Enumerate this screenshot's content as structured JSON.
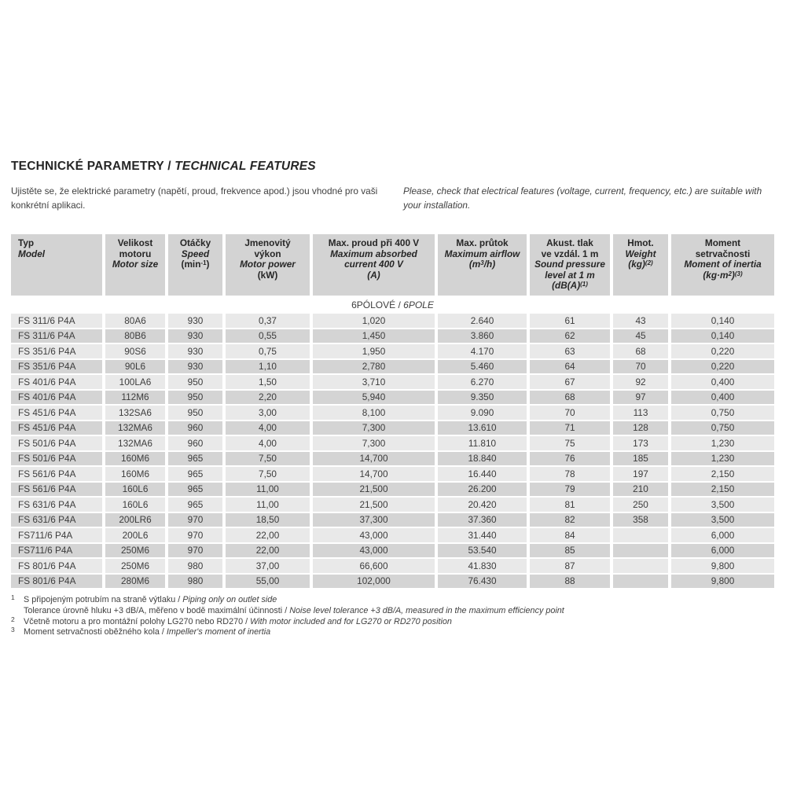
{
  "page": {
    "title": {
      "cz": "TECHNICKÉ PARAMETRY",
      "sep": " / ",
      "en": "TECHNICAL FEATURES"
    },
    "intro": {
      "cz": "Ujistěte se, že elektrické parametry (napětí, proud, frekvence apod.) jsou vhodné pro vaši konkrétní aplikaci.",
      "en": "Please, check that electrical features (voltage, current, frequency, etc.) are suitable with your installation."
    }
  },
  "colors": {
    "header_bg": "#d3d3d3",
    "row_light": "#e9e9e9",
    "row_dark": "#d4d4d4",
    "text": "#3b3b3b"
  },
  "table": {
    "section": {
      "cz": "6PÓLOVÉ",
      "sep": " / ",
      "en": "6POLE"
    },
    "columns": [
      {
        "id": "model",
        "align": "left",
        "lines": [
          [
            "Typ",
            0
          ],
          [
            "Model",
            1
          ]
        ]
      },
      {
        "id": "motor-size",
        "lines": [
          [
            "Velikost",
            0
          ],
          [
            "motoru",
            0
          ],
          [
            "Motor size",
            1
          ]
        ]
      },
      {
        "id": "speed",
        "lines": [
          [
            "Otáčky",
            0
          ],
          [
            "Speed",
            1
          ],
          [
            "(min^{-1})",
            0
          ]
        ]
      },
      {
        "id": "motor-power",
        "lines": [
          [
            "Jmenovitý",
            0
          ],
          [
            "výkon",
            0
          ],
          [
            "Motor power",
            1
          ],
          [
            "(kW)",
            0
          ]
        ]
      },
      {
        "id": "max-current",
        "lines": [
          [
            "Max. proud při 400 V",
            0
          ],
          [
            "Maximum absorbed",
            1
          ],
          [
            "current 400 V",
            1
          ],
          [
            "(A)",
            1
          ]
        ]
      },
      {
        "id": "max-airflow",
        "lines": [
          [
            "Max. průtok",
            0
          ],
          [
            "Maximum airflow",
            1
          ],
          [
            "(m^{3}/h)",
            1
          ]
        ]
      },
      {
        "id": "sound-pressure",
        "lines": [
          [
            "Akust. tlak",
            0
          ],
          [
            "ve vzdál. 1 m",
            0
          ],
          [
            "Sound pressure",
            1
          ],
          [
            "level at 1 m",
            1
          ],
          [
            "(dB(A)^{(1)}",
            1
          ]
        ]
      },
      {
        "id": "weight",
        "lines": [
          [
            "Hmot.",
            0
          ],
          [
            "Weight",
            1
          ],
          [
            "(kg)^{(2)}",
            1
          ]
        ]
      },
      {
        "id": "inertia",
        "lines": [
          [
            "Moment",
            0
          ],
          [
            "setrvačnosti",
            0
          ],
          [
            "Moment of inertia",
            1
          ],
          [
            "(kg·m^{2})^{(3)}",
            1
          ]
        ]
      }
    ],
    "rows": [
      [
        "FS 311/6 P4A",
        "80A6",
        "930",
        "0,37",
        "1,020",
        "2.640",
        "61",
        "43",
        "0,140"
      ],
      [
        "FS 311/6 P4A",
        "80B6",
        "930",
        "0,55",
        "1,450",
        "3.860",
        "62",
        "45",
        "0,140"
      ],
      [
        "FS 351/6 P4A",
        "90S6",
        "930",
        "0,75",
        "1,950",
        "4.170",
        "63",
        "68",
        "0,220"
      ],
      [
        "FS 351/6 P4A",
        "90L6",
        "930",
        "1,10",
        "2,780",
        "5.460",
        "64",
        "70",
        "0,220"
      ],
      [
        "FS 401/6 P4A",
        "100LA6",
        "950",
        "1,50",
        "3,710",
        "6.270",
        "67",
        "92",
        "0,400"
      ],
      [
        "FS 401/6 P4A",
        "112M6",
        "950",
        "2,20",
        "5,940",
        "9.350",
        "68",
        "97",
        "0,400"
      ],
      [
        "FS 451/6 P4A",
        "132SA6",
        "950",
        "3,00",
        "8,100",
        "9.090",
        "70",
        "113",
        "0,750"
      ],
      [
        "FS 451/6 P4A",
        "132MA6",
        "960",
        "4,00",
        "7,300",
        "13.610",
        "71",
        "128",
        "0,750"
      ],
      [
        "FS 501/6 P4A",
        "132MA6",
        "960",
        "4,00",
        "7,300",
        "11.810",
        "75",
        "173",
        "1,230"
      ],
      [
        "FS 501/6 P4A",
        "160M6",
        "965",
        "7,50",
        "14,700",
        "18.840",
        "76",
        "185",
        "1,230"
      ],
      [
        "FS 561/6 P4A",
        "160M6",
        "965",
        "7,50",
        "14,700",
        "16.440",
        "78",
        "197",
        "2,150"
      ],
      [
        "FS 561/6 P4A",
        "160L6",
        "965",
        "11,00",
        "21,500",
        "26.200",
        "79",
        "210",
        "2,150"
      ],
      [
        "FS 631/6 P4A",
        "160L6",
        "965",
        "11,00",
        "21,500",
        "20.420",
        "81",
        "250",
        "3,500"
      ],
      [
        "FS 631/6 P4A",
        "200LR6",
        "970",
        "18,50",
        "37,300",
        "37.360",
        "82",
        "358",
        "3,500"
      ],
      [
        "FS711/6 P4A",
        "200L6",
        "970",
        "22,00",
        "43,000",
        "31.440",
        "84",
        "",
        "6,000"
      ],
      [
        "FS711/6 P4A",
        "250M6",
        "970",
        "22,00",
        "43,000",
        "53.540",
        "85",
        "",
        "6,000"
      ],
      [
        "FS 801/6 P4A",
        "250M6",
        "980",
        "37,00",
        "66,600",
        "41.830",
        "87",
        "",
        "9,800"
      ],
      [
        "FS 801/6 P4A",
        "280M6",
        "980",
        "55,00",
        "102,000",
        "76.430",
        "88",
        "",
        "9,800"
      ]
    ]
  },
  "footnotes": [
    {
      "marker": "1",
      "cz": "S připojeným potrubím na straně výtlaku",
      "sep": " / ",
      "en": "Piping only on outlet side"
    },
    {
      "marker": "",
      "cz": "Tolerance úrovně hluku +3 dB/A, měřeno v bodě maximální účinnosti",
      "sep": " / ",
      "en": "Noise level tolerance +3 dB/A, measured in the maximum efficiency point"
    },
    {
      "marker": "2",
      "cz": "Včetně motoru a pro montážní polohy LG270 nebo RD270",
      "sep": " / ",
      "en": "With motor included and for LG270 or RD270 position"
    },
    {
      "marker": "3",
      "cz": "Moment setrvačnosti oběžného kola",
      "sep": " / ",
      "en": "Impeller's moment of inertia"
    }
  ]
}
